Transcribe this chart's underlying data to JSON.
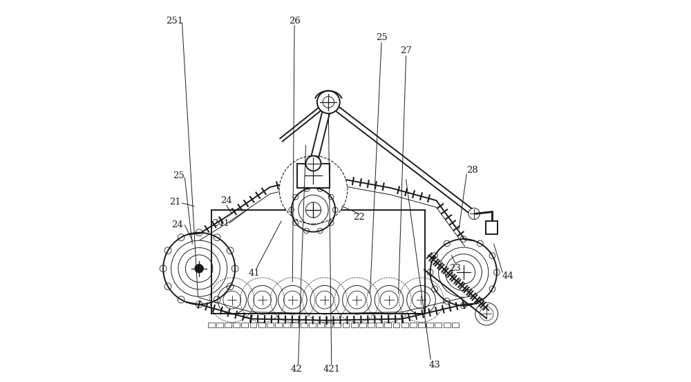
{
  "bg_color": "#ffffff",
  "line_color": "#1a1a1a",
  "label_color": "#1a1a1a",
  "figsize": [
    10.0,
    5.53
  ],
  "dpi": 100
}
